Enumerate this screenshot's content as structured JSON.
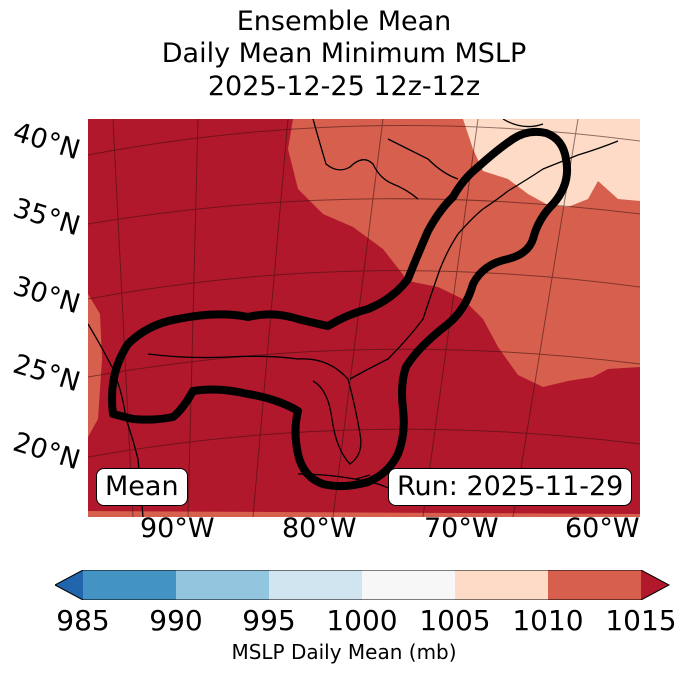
{
  "title": {
    "line1": "Ensemble Mean",
    "line2": "Daily Mean Minimum MSLP",
    "line3": "2025-12-25 12z-12z"
  },
  "latitude_labels": [
    "40°N",
    "35°N",
    "30°N",
    "25°N",
    "20°N"
  ],
  "longitude_labels": [
    "90°W",
    "80°W",
    "70°W",
    "60°W"
  ],
  "boxes": {
    "left": "Mean",
    "right": "Run: 2025-11-29"
  },
  "colorbar": {
    "label": "MSLP Daily Mean (mb)",
    "ticks": [
      "985",
      "990",
      "995",
      "1000",
      "1005",
      "1010",
      "1015"
    ],
    "bins": [
      {
        "from": 985,
        "to": 990,
        "color": "#4393c3"
      },
      {
        "from": 990,
        "to": 995,
        "color": "#92c5de"
      },
      {
        "from": 995,
        "to": 1000,
        "color": "#d1e5f0"
      },
      {
        "from": 1000,
        "to": 1005,
        "color": "#f7f7f7"
      },
      {
        "from": 1005,
        "to": 1010,
        "color": "#fddbc7"
      },
      {
        "from": 1010,
        "to": 1015,
        "color": "#d6604d"
      }
    ],
    "under_color": "#2166ac",
    "over_color": "#b2182b"
  },
  "colors": {
    "high_1015_plus": "#b2182b",
    "band_1010_1015": "#d6604d",
    "band_1005_1010": "#fddbc7",
    "contour": "#000000"
  }
}
